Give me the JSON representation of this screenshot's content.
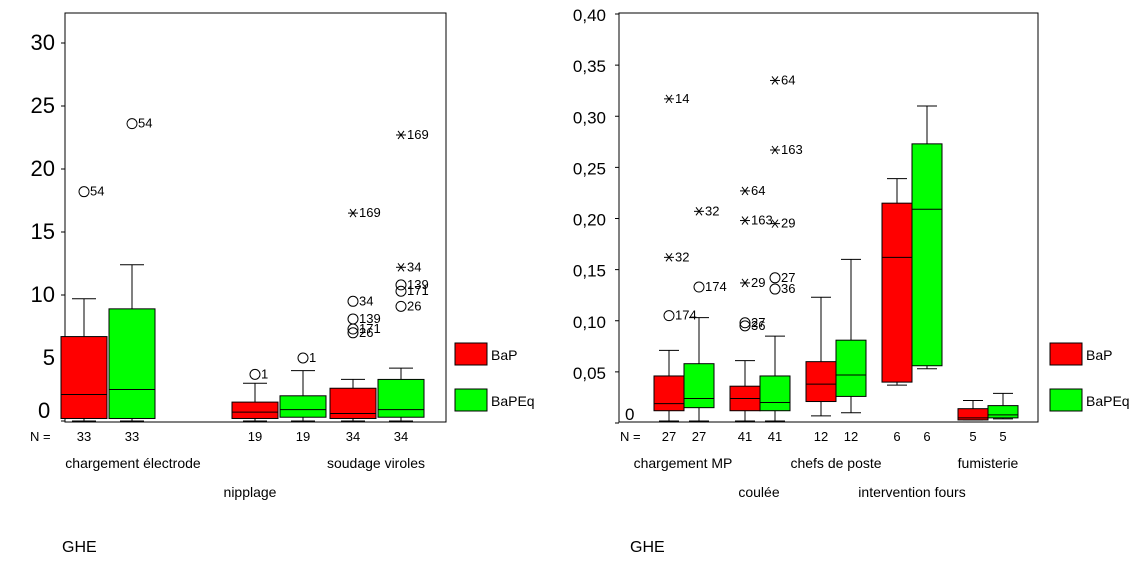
{
  "colors": {
    "bap": "#ff0000",
    "bapeq": "#00ff00",
    "axis": "#000000"
  },
  "chart_data": [
    {
      "type": "box",
      "ylim": [
        0,
        30
      ],
      "yticks": [
        0,
        5,
        10,
        15,
        20,
        25,
        30
      ],
      "ytick_labels": [
        "0",
        "5",
        "10",
        "15",
        "20",
        "25",
        "30"
      ],
      "n_label": "N =",
      "xlabel": "GHE",
      "legend": {
        "placement": "right",
        "items": [
          {
            "label": "BaP",
            "color": "#ff0000"
          },
          {
            "label": "BaPEq",
            "color": "#00ff00"
          }
        ]
      },
      "categories": [
        {
          "name": "chargement électrode",
          "row": 0
        },
        {
          "name": "nipplage",
          "row": 1
        },
        {
          "name": "soudage viroles",
          "row": 0
        }
      ],
      "boxes": [
        {
          "group": 0,
          "series": "BaP",
          "n": "33",
          "min": 0,
          "q1": 0.2,
          "median": 2.1,
          "q3": 6.7,
          "max": 9.7,
          "outliers": [
            {
              "value": 18.2,
              "label": "54",
              "marker": "circle"
            }
          ]
        },
        {
          "group": 0,
          "series": "BaPEq",
          "n": "33",
          "min": 0,
          "q1": 0.2,
          "median": 2.5,
          "q3": 8.9,
          "max": 12.4,
          "outliers": [
            {
              "value": 23.6,
              "label": "54",
              "marker": "circle"
            }
          ]
        },
        {
          "group": 1,
          "series": "BaP",
          "n": "19",
          "min": 0,
          "q1": 0.2,
          "median": 0.7,
          "q3": 1.5,
          "max": 3.0,
          "outliers": [
            {
              "value": 3.7,
              "label": "1",
              "marker": "circle"
            }
          ]
        },
        {
          "group": 1,
          "series": "BaPEq",
          "n": "19",
          "min": 0,
          "q1": 0.3,
          "median": 0.9,
          "q3": 2.0,
          "max": 4.0,
          "outliers": [
            {
              "value": 5.0,
              "label": "1",
              "marker": "circle"
            }
          ]
        },
        {
          "group": 2,
          "series": "BaP",
          "n": "34",
          "min": 0,
          "q1": 0.2,
          "median": 0.6,
          "q3": 2.6,
          "max": 3.3,
          "outliers": [
            {
              "value": 7.0,
              "label": "26",
              "marker": "circle"
            },
            {
              "value": 7.3,
              "label": "171",
              "marker": "circle"
            },
            {
              "value": 8.1,
              "label": "139",
              "marker": "circle"
            },
            {
              "value": 9.5,
              "label": "34",
              "marker": "circle"
            },
            {
              "value": 16.5,
              "label": "169",
              "marker": "star"
            }
          ]
        },
        {
          "group": 2,
          "series": "BaPEq",
          "n": "34",
          "min": 0,
          "q1": 0.3,
          "median": 0.9,
          "q3": 3.3,
          "max": 4.2,
          "outliers": [
            {
              "value": 9.1,
              "label": "26",
              "marker": "circle"
            },
            {
              "value": 10.3,
              "label": "171",
              "marker": "circle"
            },
            {
              "value": 10.8,
              "label": "139",
              "marker": "circle"
            },
            {
              "value": 12.2,
              "label": "34",
              "marker": "star"
            },
            {
              "value": 22.7,
              "label": "169",
              "marker": "star"
            }
          ]
        }
      ]
    },
    {
      "type": "box",
      "ylim": [
        0,
        0.4
      ],
      "yticks": [
        0,
        0.05,
        0.1,
        0.15,
        0.2,
        0.25,
        0.3,
        0.35,
        0.4
      ],
      "ytick_labels": [
        "0",
        "0,05",
        "0,10",
        "0,15",
        "0,20",
        "0,25",
        "0,30",
        "0,35",
        "0,40"
      ],
      "n_label": "N =",
      "xlabel": "GHE",
      "legend": {
        "placement": "right",
        "items": [
          {
            "label": "BaP",
            "color": "#ff0000"
          },
          {
            "label": "BaPEq",
            "color": "#00ff00"
          }
        ]
      },
      "categories": [
        {
          "name": "chargement MP",
          "row": 0
        },
        {
          "name": "coulée",
          "row": 1
        },
        {
          "name": "chefs de poste",
          "row": 0
        },
        {
          "name": "intervention fours",
          "row": 1
        },
        {
          "name": "fumisterie",
          "row": 0
        }
      ],
      "boxes": [
        {
          "group": 0,
          "series": "BaP",
          "n": "27",
          "min": 0.002,
          "q1": 0.012,
          "median": 0.019,
          "q3": 0.046,
          "max": 0.071,
          "outliers": [
            {
              "value": 0.105,
              "label": "174",
              "marker": "circle"
            },
            {
              "value": 0.162,
              "label": "32",
              "marker": "star"
            },
            {
              "value": 0.317,
              "label": "14",
              "marker": "star"
            }
          ]
        },
        {
          "group": 0,
          "series": "BaPEq",
          "n": "27",
          "min": 0.002,
          "q1": 0.015,
          "median": 0.024,
          "q3": 0.058,
          "max": 0.103,
          "outliers": [
            {
              "value": 0.133,
              "label": "174",
              "marker": "circle"
            },
            {
              "value": 0.207,
              "label": "32",
              "marker": "star"
            }
          ]
        },
        {
          "group": 1,
          "series": "BaP",
          "n": "41",
          "min": 0.002,
          "q1": 0.012,
          "median": 0.024,
          "q3": 0.036,
          "max": 0.061,
          "outliers": [
            {
              "value": 0.095,
              "label": "36",
              "marker": "circle"
            },
            {
              "value": 0.098,
              "label": "27",
              "marker": "circle"
            },
            {
              "value": 0.137,
              "label": "29",
              "marker": "star"
            },
            {
              "value": 0.198,
              "label": "163",
              "marker": "star"
            },
            {
              "value": 0.227,
              "label": "64",
              "marker": "star"
            }
          ]
        },
        {
          "group": 1,
          "series": "BaPEq",
          "n": "41",
          "min": 0.002,
          "q1": 0.012,
          "median": 0.02,
          "q3": 0.046,
          "max": 0.085,
          "outliers": [
            {
              "value": 0.131,
              "label": "36",
              "marker": "circle"
            },
            {
              "value": 0.142,
              "label": "27",
              "marker": "circle"
            },
            {
              "value": 0.195,
              "label": "29",
              "marker": "star"
            },
            {
              "value": 0.267,
              "label": "163",
              "marker": "star"
            },
            {
              "value": 0.335,
              "label": "64",
              "marker": "star"
            }
          ]
        },
        {
          "group": 2,
          "series": "BaP",
          "n": "12",
          "min": 0.007,
          "q1": 0.021,
          "median": 0.038,
          "q3": 0.06,
          "max": 0.123,
          "outliers": []
        },
        {
          "group": 2,
          "series": "BaPEq",
          "n": "12",
          "min": 0.01,
          "q1": 0.026,
          "median": 0.047,
          "q3": 0.081,
          "max": 0.16,
          "outliers": []
        },
        {
          "group": 3,
          "series": "BaP",
          "n": "6",
          "min": 0.037,
          "q1": 0.04,
          "median": 0.162,
          "q3": 0.215,
          "max": 0.239,
          "outliers": []
        },
        {
          "group": 3,
          "series": "BaPEq",
          "n": "6",
          "min": 0.053,
          "q1": 0.056,
          "median": 0.209,
          "q3": 0.273,
          "max": 0.31,
          "outliers": []
        },
        {
          "group": 4,
          "series": "BaP",
          "n": "5",
          "min": 0.003,
          "q1": 0.003,
          "median": 0.005,
          "q3": 0.014,
          "max": 0.022,
          "outliers": []
        },
        {
          "group": 4,
          "series": "BaPEq",
          "n": "5",
          "min": 0.004,
          "q1": 0.005,
          "median": 0.008,
          "q3": 0.017,
          "max": 0.029,
          "outliers": []
        }
      ]
    }
  ]
}
